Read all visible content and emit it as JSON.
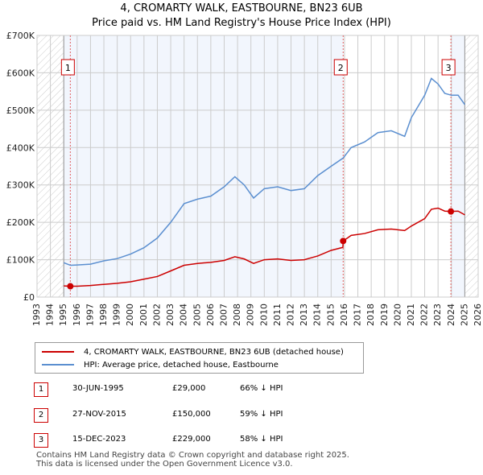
{
  "chart_data": {
    "type": "line",
    "title": "4, CROMARTY WALK, EASTBOURNE, BN23 6UB",
    "subtitle": "Price paid vs. HM Land Registry's House Price Index (HPI)",
    "xlim": [
      1993,
      2026
    ],
    "ylim": [
      0,
      700000
    ],
    "y_ticks": [
      0,
      100000,
      200000,
      300000,
      400000,
      500000,
      600000,
      700000
    ],
    "y_tick_labels": [
      "£0",
      "£100K",
      "£200K",
      "£300K",
      "£400K",
      "£500K",
      "£600K",
      "£700K"
    ],
    "x_tick_labels": [
      "1993",
      "1994",
      "1995",
      "1996",
      "1997",
      "1998",
      "1999",
      "2000",
      "2001",
      "2002",
      "2003",
      "2004",
      "2005",
      "2006",
      "2007",
      "2008",
      "2009",
      "2010",
      "2011",
      "2012",
      "2013",
      "2014",
      "2015",
      "2016",
      "2017",
      "2018",
      "2019",
      "2020",
      "2021",
      "2022",
      "2023",
      "2024",
      "2025",
      "2026"
    ],
    "grid": true,
    "series": [
      {
        "name": "4, CROMARTY WALK, EASTBOURNE, BN23 6UB (detached house)",
        "color": "#cc0000",
        "x": [
          1995.0,
          1995.5,
          1996,
          1997,
          1998,
          1999,
          2000,
          2001,
          2002,
          2003,
          2004,
          2005,
          2006,
          2007,
          2007.8,
          2008.5,
          2009.2,
          2010,
          2011,
          2012,
          2013,
          2014,
          2015,
          2015.88,
          2015.9,
          2016.5,
          2017.5,
          2018.5,
          2019.5,
          2020.5,
          2021,
          2022,
          2022.5,
          2023,
          2023.5,
          2023.96,
          2024.5,
          2025
        ],
        "y": [
          30000,
          29000,
          29000,
          31000,
          34000,
          37000,
          41000,
          48000,
          55000,
          70000,
          85000,
          90000,
          93000,
          98000,
          108000,
          102000,
          90000,
          100000,
          102000,
          98000,
          100000,
          110000,
          125000,
          133000,
          150000,
          165000,
          170000,
          180000,
          182000,
          178000,
          190000,
          210000,
          235000,
          238000,
          230000,
          229000,
          230000,
          220000
        ]
      },
      {
        "name": "HPI: Average price, detached house, Eastbourne",
        "color": "#5b8fd0",
        "x": [
          1995.0,
          1995.5,
          1996,
          1997,
          1998,
          1999,
          2000,
          2001,
          2002,
          2003,
          2003.5,
          2004,
          2005,
          2006,
          2007,
          2007.8,
          2008.5,
          2009.2,
          2010,
          2011,
          2012,
          2013,
          2014,
          2015,
          2015.9,
          2016.5,
          2017.5,
          2018.5,
          2019.5,
          2020.5,
          2021,
          2022,
          2022.5,
          2023,
          2023.5,
          2024,
          2024.5,
          2025
        ],
        "y": [
          92000,
          85000,
          86000,
          88000,
          97000,
          103000,
          115000,
          132000,
          158000,
          200000,
          225000,
          250000,
          262000,
          270000,
          295000,
          322000,
          300000,
          265000,
          290000,
          295000,
          285000,
          290000,
          325000,
          350000,
          372000,
          400000,
          415000,
          440000,
          445000,
          430000,
          480000,
          540000,
          585000,
          570000,
          545000,
          540000,
          540000,
          515000
        ]
      }
    ],
    "sales": [
      {
        "label": "1",
        "x": 1995.49,
        "y": 29000
      },
      {
        "label": "2",
        "x": 2015.9,
        "y": 150000
      },
      {
        "label": "3",
        "x": 2023.96,
        "y": 229000
      }
    ],
    "legend_position": "bottom"
  },
  "transactions": [
    {
      "num": "1",
      "date": "30-JUN-1995",
      "price": "£29,000",
      "hpi": "66% ↓ HPI"
    },
    {
      "num": "2",
      "date": "27-NOV-2015",
      "price": "£150,000",
      "hpi": "59% ↓ HPI"
    },
    {
      "num": "3",
      "date": "15-DEC-2023",
      "price": "£229,000",
      "hpi": "58% ↓ HPI"
    }
  ],
  "footer": {
    "line1": "Contains HM Land Registry data © Crown copyright and database right 2025.",
    "line2": "This data is licensed under the Open Government Licence v3.0."
  }
}
